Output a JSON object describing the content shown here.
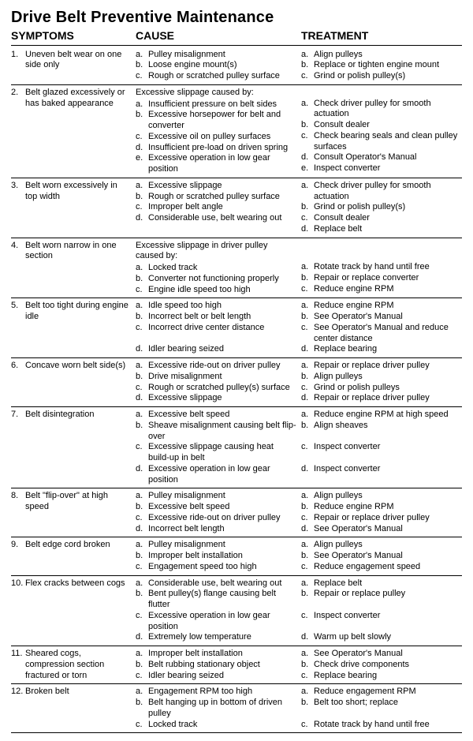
{
  "title": "Drive Belt Preventive Maintenance",
  "headers": {
    "symptoms": "SYMPTOMS",
    "cause": "CAUSE",
    "treatment": "TREATMENT"
  },
  "rows": [
    {
      "num": "1.",
      "symptom": "Uneven belt wear on one side only",
      "cause_intro": null,
      "causes": [
        {
          "l": "a.",
          "t": "Pulley misalignment"
        },
        {
          "l": "b.",
          "t": "Loose engine mount(s)"
        },
        {
          "l": "c.",
          "t": "Rough or scratched pulley surface"
        }
      ],
      "treatments": [
        {
          "l": "a.",
          "t": "Align pulleys"
        },
        {
          "l": "b.",
          "t": "Replace or tighten engine mount"
        },
        {
          "l": "c.",
          "t": "Grind or polish pulley(s)"
        }
      ]
    },
    {
      "num": "2.",
      "symptom": "Belt glazed excessively or has baked appearance",
      "cause_intro": "Excessive slippage caused by:",
      "causes": [
        {
          "l": "a.",
          "t": "Insufficient pressure on belt sides"
        },
        {
          "l": "b.",
          "t": "Excessive horsepower for belt and converter"
        },
        {
          "l": "c.",
          "t": "Excessive oil on pulley surfaces"
        },
        {
          "l": "d.",
          "t": "Insufficient pre-load on driven spring"
        },
        {
          "l": "e.",
          "t": "Excessive operation in low gear position"
        }
      ],
      "treat_pad": 1,
      "treatments": [
        {
          "l": "a.",
          "t": "Check driver pulley for smooth actuation"
        },
        {
          "l": "b.",
          "t": "Consult dealer"
        },
        {
          "l": "c.",
          "t": "Check bearing seals and clean pulley surfaces"
        },
        {
          "l": "d.",
          "t": "Consult Operator's Manual"
        },
        {
          "l": "e.",
          "t": "Inspect converter"
        }
      ]
    },
    {
      "num": "3.",
      "symptom": "Belt worn excessively in top width",
      "cause_intro": null,
      "causes": [
        {
          "l": "a.",
          "t": "Excessive slippage"
        },
        {
          "l": "b.",
          "t": "Rough or scratched pulley surface"
        },
        {
          "l": "c.",
          "t": "Improper belt angle"
        },
        {
          "l": "d.",
          "t": "Considerable use, belt wearing out"
        }
      ],
      "treatments": [
        {
          "l": "a.",
          "t": "Check driver pulley for smooth actuation"
        },
        {
          "l": "b.",
          "t": "Grind or polish pulley(s)"
        },
        {
          "l": "c.",
          "t": "Consult dealer"
        },
        {
          "l": "d.",
          "t": "Replace belt"
        }
      ]
    },
    {
      "num": "4.",
      "symptom": "Belt worn narrow in one section",
      "cause_intro": "Excessive slippage in driver pulley caused by:",
      "causes": [
        {
          "l": "a.",
          "t": "Locked track"
        },
        {
          "l": "b.",
          "t": "Converter not functioning properly"
        },
        {
          "l": "c.",
          "t": "Engine idle speed too high"
        }
      ],
      "treat_pad": 2,
      "treatments": [
        {
          "l": "a.",
          "t": "Rotate track by hand until free"
        },
        {
          "l": "b.",
          "t": "Repair or replace converter"
        },
        {
          "l": "c.",
          "t": "Reduce engine RPM"
        }
      ]
    },
    {
      "num": "5.",
      "symptom": "Belt too tight during engine idle",
      "cause_intro": null,
      "causes": [
        {
          "l": "a.",
          "t": "Idle speed too high"
        },
        {
          "l": "b.",
          "t": "Incorrect belt or belt length"
        },
        {
          "l": "c.",
          "t": "Incorrect drive center distance"
        },
        {
          "l": "",
          "t": " "
        },
        {
          "l": "d.",
          "t": "Idler bearing seized"
        }
      ],
      "treatments": [
        {
          "l": "a.",
          "t": "Reduce engine RPM"
        },
        {
          "l": "b.",
          "t": "See Operator's Manual"
        },
        {
          "l": "c.",
          "t": "See Operator's Manual and reduce center distance"
        },
        {
          "l": "d.",
          "t": "Replace bearing"
        }
      ]
    },
    {
      "num": "6.",
      "symptom": "Concave worn belt side(s)",
      "cause_intro": null,
      "causes": [
        {
          "l": "a.",
          "t": "Excessive ride-out on driver pulley"
        },
        {
          "l": "b.",
          "t": "Drive misalignment"
        },
        {
          "l": "c.",
          "t": "Rough or scratched pulley(s) surface"
        },
        {
          "l": "d.",
          "t": "Excessive slippage"
        }
      ],
      "treatments": [
        {
          "l": "a.",
          "t": "Repair or replace driver pulley"
        },
        {
          "l": "b.",
          "t": "Align pulleys"
        },
        {
          "l": "c.",
          "t": "Grind or polish pulleys"
        },
        {
          "l": "d.",
          "t": "Repair or replace driver pulley"
        }
      ]
    },
    {
      "num": "7.",
      "symptom": "Belt disintegration",
      "cause_intro": null,
      "causes": [
        {
          "l": "a.",
          "t": "Excessive belt speed"
        },
        {
          "l": "b.",
          "t": "Sheave misalignment causing belt flip-over"
        },
        {
          "l": "c.",
          "t": "Excessive slippage causing heat build-up in belt"
        },
        {
          "l": "d.",
          "t": "Excessive operation in low gear position"
        }
      ],
      "treatments": [
        {
          "l": "a.",
          "t": "Reduce engine RPM at high speed"
        },
        {
          "l": "b.",
          "t": "Align sheaves"
        },
        {
          "l": "",
          "t": " "
        },
        {
          "l": "c.",
          "t": "Inspect converter"
        },
        {
          "l": "",
          "t": " "
        },
        {
          "l": "d.",
          "t": "Inspect converter"
        }
      ]
    },
    {
      "num": "8.",
      "symptom": "Belt \"flip-over\" at high speed",
      "cause_intro": null,
      "causes": [
        {
          "l": "a.",
          "t": "Pulley misalignment"
        },
        {
          "l": "b.",
          "t": "Excessive belt speed"
        },
        {
          "l": "c.",
          "t": "Excessive ride-out on driver pulley"
        },
        {
          "l": "d.",
          "t": "Incorrect belt length"
        }
      ],
      "treatments": [
        {
          "l": "a.",
          "t": "Align pulleys"
        },
        {
          "l": "b.",
          "t": "Reduce engine RPM"
        },
        {
          "l": "c.",
          "t": "Repair or replace driver pulley"
        },
        {
          "l": "d.",
          "t": "See Operator's Manual"
        }
      ]
    },
    {
      "num": "9.",
      "symptom": "Belt edge cord broken",
      "cause_intro": null,
      "causes": [
        {
          "l": "a.",
          "t": "Pulley misalignment"
        },
        {
          "l": "b.",
          "t": "Improper belt installation"
        },
        {
          "l": "c.",
          "t": "Engagement speed too high"
        }
      ],
      "treatments": [
        {
          "l": "a.",
          "t": "Align pulleys"
        },
        {
          "l": "b.",
          "t": "See Operator's Manual"
        },
        {
          "l": "c.",
          "t": "Reduce engagement speed"
        }
      ]
    },
    {
      "num": "10.",
      "symptom": "Flex cracks between cogs",
      "cause_intro": null,
      "causes": [
        {
          "l": "a.",
          "t": "Considerable use, belt wearing out"
        },
        {
          "l": "b.",
          "t": "Bent pulley(s) flange causing belt flutter"
        },
        {
          "l": "c.",
          "t": "Excessive operation in low gear position"
        },
        {
          "l": "d.",
          "t": "Extremely low temperature"
        }
      ],
      "treatments": [
        {
          "l": "a.",
          "t": "Replace belt"
        },
        {
          "l": "b.",
          "t": "Repair or replace pulley"
        },
        {
          "l": "",
          "t": " "
        },
        {
          "l": "c.",
          "t": "Inspect converter"
        },
        {
          "l": "",
          "t": " "
        },
        {
          "l": "d.",
          "t": "Warm up belt slowly"
        }
      ]
    },
    {
      "num": "11.",
      "symptom": "Sheared cogs, compression section fractured or torn",
      "cause_intro": null,
      "causes": [
        {
          "l": "a.",
          "t": "Improper belt installation"
        },
        {
          "l": "b.",
          "t": "Belt rubbing stationary object"
        },
        {
          "l": "c.",
          "t": "Idler bearing seized"
        }
      ],
      "treatments": [
        {
          "l": "a.",
          "t": "See Operator's Manual"
        },
        {
          "l": "b.",
          "t": "Check drive components"
        },
        {
          "l": "c.",
          "t": "Replace bearing"
        }
      ]
    },
    {
      "num": "12.",
      "symptom": "Broken belt",
      "cause_intro": null,
      "causes": [
        {
          "l": "a.",
          "t": "Engagement RPM too high"
        },
        {
          "l": "b.",
          "t": "Belt hanging up in bottom of driven pulley"
        },
        {
          "l": "c.",
          "t": "Locked track"
        }
      ],
      "treatments": [
        {
          "l": "a.",
          "t": "Reduce engagement RPM"
        },
        {
          "l": "b.",
          "t": "Belt too short; replace"
        },
        {
          "l": "",
          "t": " "
        },
        {
          "l": "c.",
          "t": "Rotate track by hand until free"
        }
      ]
    }
  ]
}
